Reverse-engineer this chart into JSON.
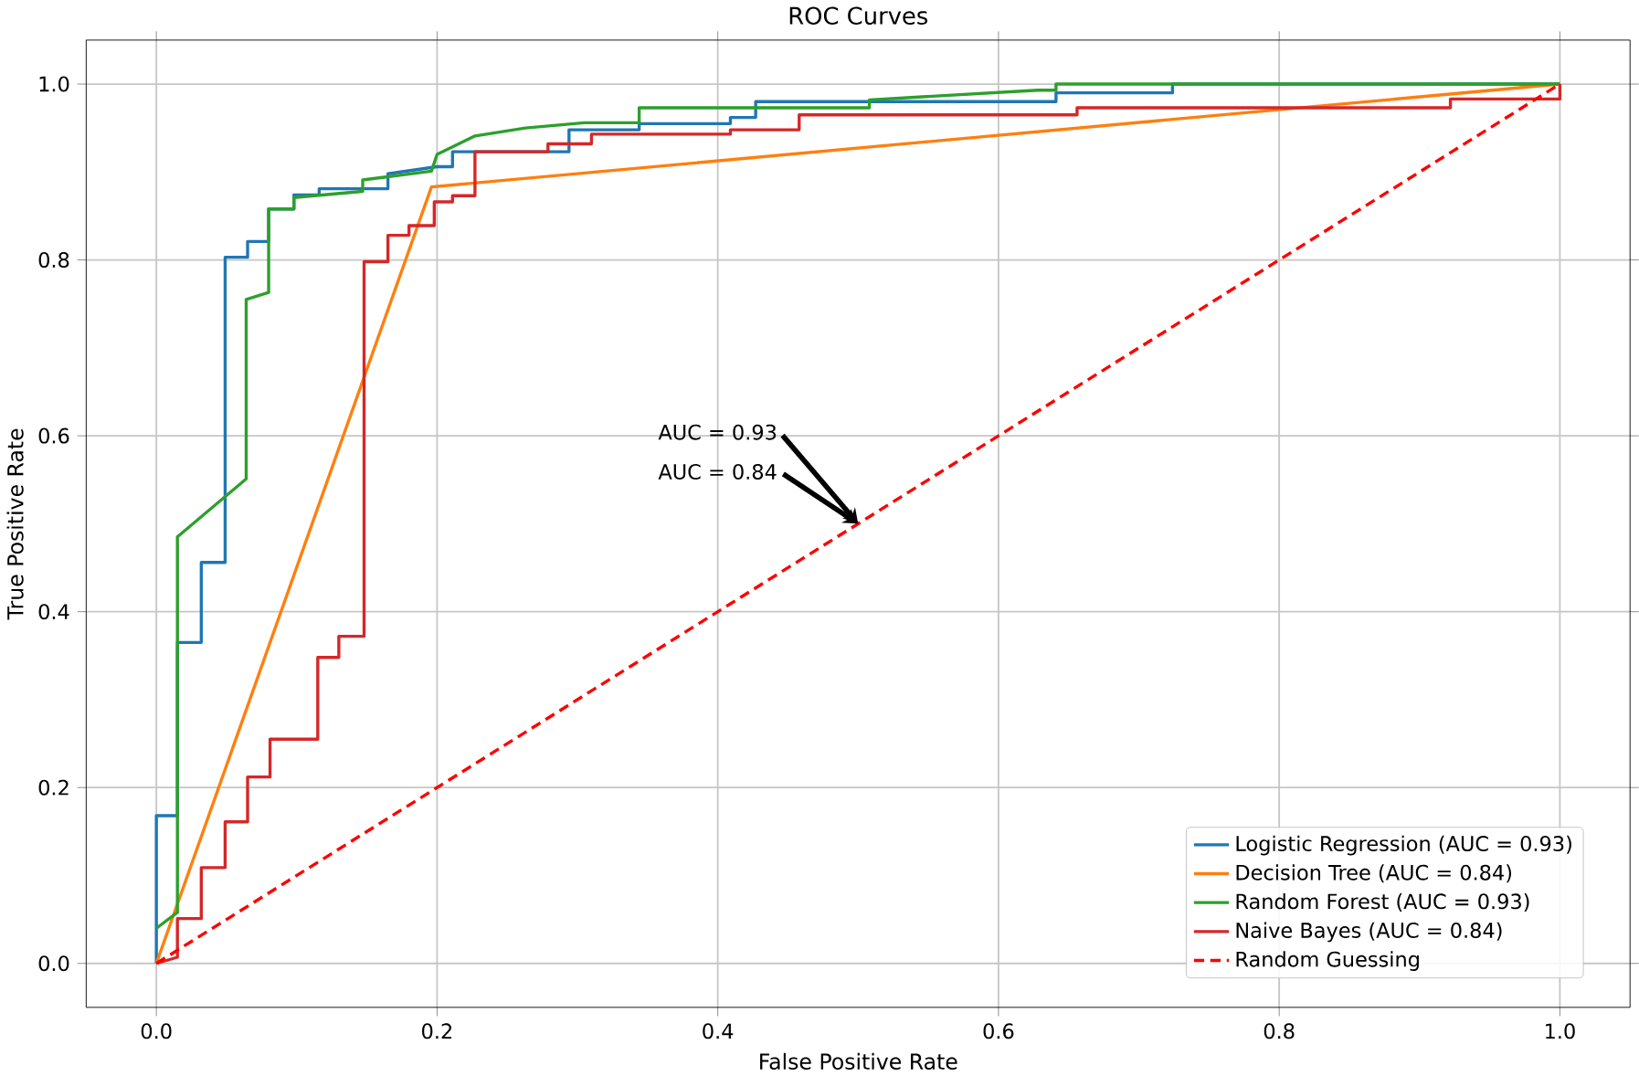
{
  "chart_data": {
    "type": "line",
    "title": "ROC Curves",
    "xlabel": "False Positive Rate",
    "ylabel": "True Positive Rate",
    "xlim": [
      -0.05,
      1.05
    ],
    "ylim": [
      -0.05,
      1.05
    ],
    "xticks": [
      {
        "value": 0,
        "label": "0.0"
      },
      {
        "value": 0.2,
        "label": "0.2"
      },
      {
        "value": 0.4,
        "label": "0.4"
      },
      {
        "value": 0.6,
        "label": "0.6"
      },
      {
        "value": 0.8,
        "label": "0.8"
      },
      {
        "value": 1,
        "label": "1.0"
      }
    ],
    "yticks": [
      {
        "value": 0,
        "label": "0.0"
      },
      {
        "value": 0.2,
        "label": "0.2"
      },
      {
        "value": 0.4,
        "label": "0.4"
      },
      {
        "value": 0.6,
        "label": "0.6"
      },
      {
        "value": 0.8,
        "label": "0.8"
      },
      {
        "value": 1,
        "label": "1.0"
      }
    ],
    "grid": true,
    "legend": "bottom right",
    "marker": "none",
    "annotations": [
      {
        "text": "AUC = 0.93",
        "x": 0.5,
        "y": 0.5
      },
      {
        "text": "AUC = 0.84",
        "x": 0.5,
        "y": 0.5
      }
    ],
    "series": [
      {
        "name": "Logistic Regression (AUC = 0.93)",
        "color": "#1f77b4",
        "x": [
          0,
          0,
          0.015,
          0.015,
          0.032,
          0.032,
          0.049,
          0.049,
          0.065,
          0.065,
          0.08,
          0.08,
          0.098,
          0.098,
          0.116,
          0.116,
          0.165,
          0.165,
          0.2,
          0.211,
          0.211,
          0.294,
          0.294,
          0.344,
          0.344,
          0.409,
          0.409,
          0.427,
          0.427,
          0.641,
          0.641,
          0.724,
          0.724,
          1
        ],
        "values": [
          0,
          0.168,
          0.168,
          0.365,
          0.365,
          0.456,
          0.456,
          0.803,
          0.803,
          0.821,
          0.821,
          0.858,
          0.858,
          0.874,
          0.874,
          0.881,
          0.881,
          0.898,
          0.906,
          0.906,
          0.923,
          0.923,
          0.948,
          0.948,
          0.955,
          0.955,
          0.962,
          0.962,
          0.98,
          0.98,
          0.99,
          0.99,
          1,
          1
        ]
      },
      {
        "name": "Decision Tree (AUC = 0.84)",
        "color": "#ff7f0e",
        "x": [
          0,
          0.196,
          1
        ],
        "values": [
          0,
          0.883,
          1
        ]
      },
      {
        "name": "Random Forest (AUC = 0.93)",
        "color": "#2ca02c",
        "x": [
          0,
          0.015,
          0.015,
          0.064,
          0.064,
          0.08,
          0.08,
          0.098,
          0.098,
          0.147,
          0.147,
          0.196,
          0.2,
          0.227,
          0.263,
          0.305,
          0.344,
          0.344,
          0.508,
          0.508,
          0.628,
          0.641,
          0.641,
          1
        ],
        "values": [
          0.04,
          0.058,
          0.485,
          0.551,
          0.755,
          0.763,
          0.858,
          0.858,
          0.871,
          0.878,
          0.891,
          0.901,
          0.92,
          0.941,
          0.95,
          0.956,
          0.956,
          0.973,
          0.973,
          0.982,
          0.993,
          0.993,
          1,
          1
        ]
      },
      {
        "name": "Naive Bayes (AUC = 0.84)",
        "color": "#d62728",
        "x": [
          0,
          0.015,
          0.015,
          0.032,
          0.032,
          0.049,
          0.049,
          0.065,
          0.065,
          0.081,
          0.081,
          0.115,
          0.115,
          0.13,
          0.13,
          0.148,
          0.148,
          0.165,
          0.165,
          0.18,
          0.18,
          0.198,
          0.198,
          0.211,
          0.211,
          0.227,
          0.227,
          0.279,
          0.279,
          0.31,
          0.31,
          0.409,
          0.409,
          0.458,
          0.458,
          0.656,
          0.656,
          0.922,
          0.922,
          1,
          1
        ],
        "values": [
          0,
          0.007,
          0.051,
          0.051,
          0.109,
          0.109,
          0.161,
          0.161,
          0.212,
          0.212,
          0.255,
          0.255,
          0.348,
          0.348,
          0.372,
          0.372,
          0.798,
          0.798,
          0.828,
          0.828,
          0.839,
          0.839,
          0.866,
          0.866,
          0.873,
          0.873,
          0.923,
          0.923,
          0.932,
          0.932,
          0.943,
          0.943,
          0.948,
          0.948,
          0.965,
          0.965,
          0.973,
          0.973,
          0.983,
          0.983,
          1
        ]
      },
      {
        "name": "Random Guessing",
        "color": "#ff0000",
        "line_style": "dashed",
        "x": [
          0,
          1
        ],
        "values": [
          0,
          1
        ]
      }
    ]
  }
}
